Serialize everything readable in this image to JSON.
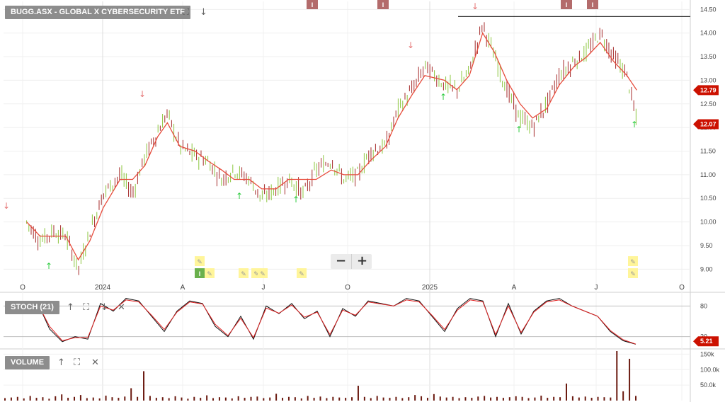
{
  "header": {
    "title": "BUGG.ASX - GLOBAL X CYBERSECURITY ETF",
    "expand_icon": "expand-icon",
    "down_icon": "arrow-down-icon"
  },
  "zoom": {
    "minus_label": "−",
    "plus_label": "+"
  },
  "x_axis_labels": [
    "O",
    "2024",
    "A",
    "J",
    "O",
    "2025",
    "A",
    "J",
    "O"
  ],
  "price_axis_ticks": [
    "14.50",
    "14.00",
    "13.50",
    "13.00",
    "12.50",
    "12.00",
    "11.50",
    "11.00",
    "10.50",
    "10.00",
    "9.50",
    "9.00"
  ],
  "price_badges": {
    "ma_value": "12.79",
    "last_value": "12.07"
  },
  "stoch_panel": {
    "label": "STOCH (21)",
    "ticks": [
      "80",
      "20"
    ],
    "badge": "5.21"
  },
  "volume_panel": {
    "label": "VOLUME",
    "ticks": [
      "150k",
      "100.0k",
      "50.0k"
    ]
  },
  "event_markers": {
    "top_letter": "I",
    "bottom_letter": "I"
  },
  "colors": {
    "ma_line": "#e74c3c",
    "candle_up": "#8cc63f",
    "candle_down": "#a52a2a",
    "stoch_k": "#111111",
    "stoch_d": "#e02020",
    "volume_bar": "#6b1a10",
    "down_arrow": "#e57373",
    "up_arrow": "#2ecc40",
    "badge_red": "#cc1100",
    "marker": "#b36b6b",
    "note_yellow": "#fff59a"
  },
  "chart_data": [
    {
      "type": "line",
      "title": "BUGG.ASX - GLOBAL X CYBERSECURITY ETF",
      "xlabel": "",
      "ylabel": "",
      "ylim": [
        8.75,
        14.55
      ],
      "resistance_level": 14.35,
      "x_labels": [
        "O",
        "2024",
        "A",
        "J",
        "O",
        "2025",
        "A",
        "J",
        "O"
      ],
      "series": [
        {
          "name": "Price",
          "x": [
            "2023-09-25",
            "2023-10-10",
            "2023-10-25",
            "2023-11-08",
            "2023-11-22",
            "2023-12-05",
            "2023-12-20",
            "2024-01-08",
            "2024-01-22",
            "2024-02-05",
            "2024-02-19",
            "2024-03-01",
            "2024-03-15",
            "2024-04-01",
            "2024-04-15",
            "2024-05-01",
            "2024-05-15",
            "2024-06-01",
            "2024-06-15",
            "2024-07-01",
            "2024-07-15",
            "2024-08-01",
            "2024-08-15",
            "2024-09-01",
            "2024-09-15",
            "2024-10-01",
            "2024-10-15",
            "2024-11-01",
            "2024-11-15",
            "2024-12-01",
            "2024-12-15",
            "2025-01-06",
            "2025-01-20",
            "2025-02-03",
            "2025-02-18",
            "2025-03-03",
            "2025-03-17",
            "2025-04-01",
            "2025-04-15",
            "2025-05-01",
            "2025-05-15",
            "2025-06-01",
            "2025-06-15",
            "2025-06-30",
            "2025-07-15",
            "2025-07-30",
            "2025-08-10"
          ],
          "values": [
            10.0,
            9.6,
            9.8,
            9.7,
            9.0,
            9.8,
            10.6,
            11.0,
            10.6,
            11.4,
            11.9,
            12.3,
            11.6,
            11.4,
            11.3,
            10.9,
            11.1,
            10.9,
            10.5,
            10.7,
            10.9,
            10.6,
            11.1,
            11.3,
            10.9,
            11.0,
            11.5,
            11.6,
            12.4,
            12.8,
            13.3,
            12.9,
            12.8,
            13.2,
            14.2,
            13.5,
            12.8,
            12.2,
            12.0,
            12.5,
            13.1,
            13.4,
            13.6,
            14.0,
            13.5,
            13.1,
            12.1
          ]
        },
        {
          "name": "Moving average",
          "x": [
            "2023-09-25",
            "2023-10-10",
            "2023-10-25",
            "2023-11-08",
            "2023-11-22",
            "2023-12-05",
            "2023-12-20",
            "2024-01-08",
            "2024-01-22",
            "2024-02-05",
            "2024-02-19",
            "2024-03-01",
            "2024-03-15",
            "2024-04-01",
            "2024-04-15",
            "2024-05-01",
            "2024-05-15",
            "2024-06-01",
            "2024-06-15",
            "2024-07-01",
            "2024-07-15",
            "2024-08-01",
            "2024-08-15",
            "2024-09-01",
            "2024-09-15",
            "2024-10-01",
            "2024-10-15",
            "2024-11-01",
            "2024-11-15",
            "2024-12-01",
            "2024-12-15",
            "2025-01-06",
            "2025-01-20",
            "2025-02-03",
            "2025-02-18",
            "2025-03-03",
            "2025-03-17",
            "2025-04-01",
            "2025-04-15",
            "2025-05-01",
            "2025-05-15",
            "2025-06-01",
            "2025-06-15",
            "2025-06-30",
            "2025-07-15",
            "2025-07-30",
            "2025-08-10"
          ],
          "values": [
            10.0,
            9.7,
            9.7,
            9.7,
            9.2,
            9.6,
            10.3,
            10.9,
            10.9,
            11.2,
            11.8,
            12.1,
            11.6,
            11.5,
            11.3,
            11.1,
            10.9,
            10.9,
            10.7,
            10.7,
            10.9,
            10.9,
            10.9,
            11.1,
            11.0,
            11.0,
            11.3,
            11.6,
            12.2,
            12.7,
            13.1,
            13.0,
            12.8,
            13.1,
            14.0,
            13.6,
            13.0,
            12.5,
            12.2,
            12.4,
            12.9,
            13.3,
            13.5,
            13.8,
            13.4,
            13.1,
            12.79
          ]
        }
      ]
    },
    {
      "type": "line",
      "title": "STOCH (21)",
      "ylim": [
        0,
        100
      ],
      "reference_lines": [
        80,
        20
      ],
      "series": [
        {
          "name": "%K",
          "values": [
            90,
            35,
            10,
            20,
            15,
            85,
            70,
            95,
            90,
            60,
            30,
            70,
            90,
            85,
            40,
            20,
            60,
            15,
            80,
            65,
            85,
            55,
            70,
            20,
            75,
            60,
            90,
            85,
            80,
            95,
            90,
            60,
            30,
            75,
            95,
            90,
            20,
            85,
            25,
            70,
            90,
            95,
            80,
            70,
            60,
            30,
            12,
            5
          ]
        },
        {
          "name": "%D",
          "values": [
            88,
            40,
            12,
            18,
            18,
            80,
            72,
            92,
            88,
            62,
            34,
            68,
            88,
            84,
            44,
            22,
            56,
            18,
            76,
            66,
            82,
            58,
            68,
            24,
            72,
            62,
            88,
            84,
            80,
            92,
            88,
            62,
            34,
            72,
            92,
            88,
            24,
            80,
            28,
            68,
            88,
            92,
            80,
            70,
            60,
            32,
            14,
            5.21
          ]
        }
      ]
    },
    {
      "type": "bar",
      "title": "VOLUME",
      "ylim": [
        0,
        160000
      ],
      "series": [
        {
          "name": "Volume",
          "values": [
            8000,
            10000,
            12000,
            7000,
            15000,
            9000,
            11000,
            6000,
            14000,
            20000,
            9000,
            12000,
            18000,
            8000,
            10000,
            7000,
            16000,
            11000,
            9000,
            13000,
            40000,
            12000,
            95000,
            15000,
            9000,
            11000,
            8000,
            14000,
            10000,
            6000,
            12000,
            9000,
            17000,
            8000,
            11000,
            10000,
            7000,
            14000,
            9000,
            12000,
            13000,
            8000,
            10000,
            22000,
            9000,
            12000,
            11000,
            7000,
            15000,
            9000,
            13000,
            8000,
            12000,
            10000,
            9000,
            11000,
            48000,
            12000,
            8000,
            15000,
            10000,
            9000,
            12000,
            8000,
            11000,
            18000,
            14000,
            9000,
            21000,
            13000,
            10000,
            12000,
            8000,
            11000,
            9000,
            13000,
            15000,
            10000,
            12000,
            9000,
            11000,
            14000,
            12000,
            8000,
            10000,
            16000,
            9000,
            12000,
            11000,
            55000,
            14000,
            10000,
            13000,
            9000,
            12000,
            11000,
            10000,
            160000,
            30000,
            135000,
            15000
          ]
        }
      ]
    }
  ]
}
